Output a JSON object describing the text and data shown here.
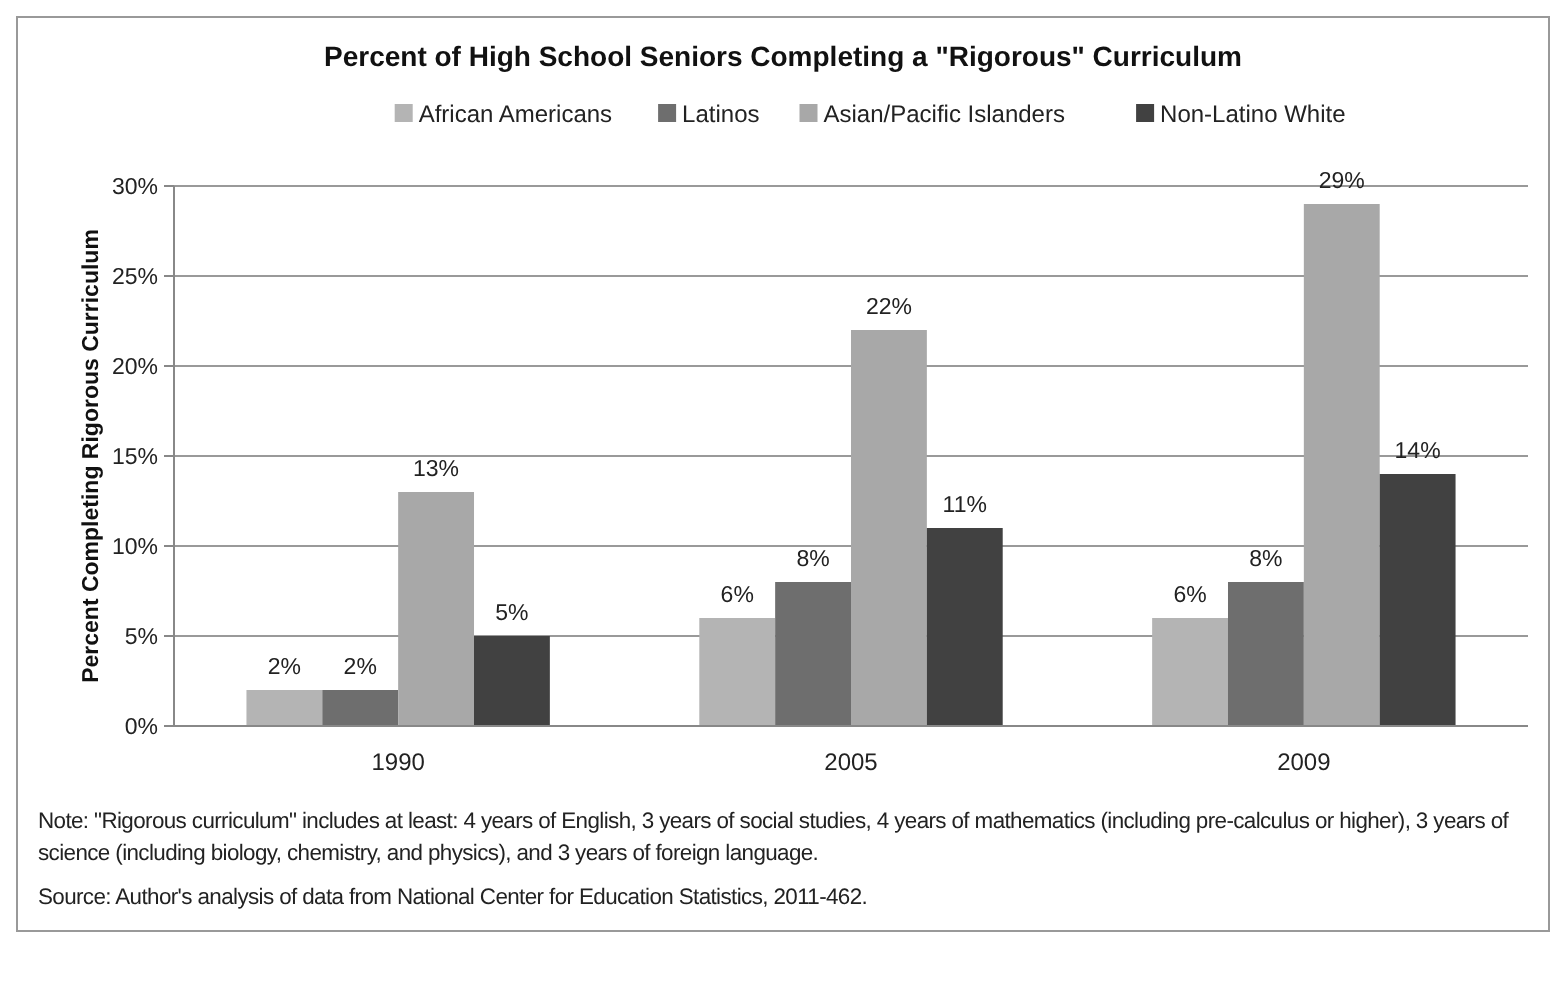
{
  "chart_data": {
    "type": "bar",
    "title": "Percent of High School Seniors Completing a \"Rigorous\" Curriculum",
    "ylabel": "Percent Completing Rigorous Curriculum",
    "categories": [
      "1990",
      "2005",
      "2009"
    ],
    "series": [
      {
        "name": "African Americans",
        "color": "#b4b4b4",
        "values": [
          2,
          6,
          6
        ],
        "value_labels": [
          "2%",
          "6%",
          "6%"
        ]
      },
      {
        "name": "Latinos",
        "color": "#6e6e6e",
        "values": [
          2,
          8,
          8
        ],
        "value_labels": [
          "2%",
          "8%",
          "8%"
        ]
      },
      {
        "name": "Asian/Pacific Islanders",
        "color": "#a8a8a8",
        "values": [
          13,
          22,
          29
        ],
        "value_labels": [
          "13%",
          "22%",
          "29%"
        ]
      },
      {
        "name": "Non-Latino White",
        "color": "#414141",
        "values": [
          5,
          11,
          14
        ],
        "value_labels": [
          "5%",
          "11%",
          "14%"
        ]
      }
    ],
    "ylim": [
      0,
      30
    ],
    "yticks": [
      {
        "value": 0,
        "label": "0%"
      },
      {
        "value": 5,
        "label": "5%"
      },
      {
        "value": 10,
        "label": "10%"
      },
      {
        "value": 15,
        "label": "15%"
      },
      {
        "value": 20,
        "label": "20%"
      },
      {
        "value": 25,
        "label": "25%"
      },
      {
        "value": 30,
        "label": "30%"
      }
    ],
    "grid": "y",
    "legend": "top",
    "annotations": [
      "Note: \"Rigorous curriculum\" includes  at least: 4 years of English, 3 years of social studies, 4 years of mathematics (including pre-calculus or higher), 3 years of science (including biology, chemistry, and physics), and 3 years of foreign language.",
      "Source: Author's analysis of data from National Center for Education Statistics, 2011-462."
    ]
  }
}
